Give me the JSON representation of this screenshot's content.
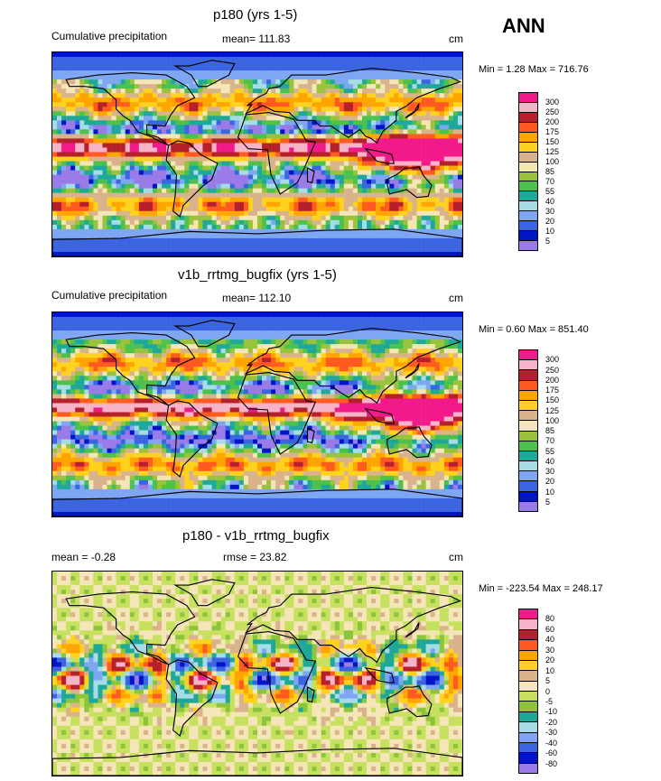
{
  "season": "ANN",
  "panels": [
    {
      "title": "p180 (yrs 1-5)",
      "left_label": "Cumulative precipitation",
      "center_label": "mean= 111.83",
      "units": "cm",
      "minmax": "Min =   1.28 Max = 716.76"
    },
    {
      "title": "v1b_rrtmg_bugfix (yrs 1-5)",
      "left_label": "Cumulative precipitation",
      "center_label": "mean= 112.10",
      "units": "cm",
      "minmax": "Min =  0.60 Max = 851.40"
    },
    {
      "title": "p180 - v1b_rrtmg_bugfix",
      "left_label": "mean =  -0.28",
      "center_label": "rmse =  23.82",
      "units": "cm",
      "minmax": "Min = -223.54 Max = 248.17"
    }
  ],
  "colorbar_abs": {
    "levels": [
      "300",
      "250",
      "200",
      "175",
      "150",
      "125",
      "100",
      "85",
      "70",
      "55",
      "40",
      "30",
      "20",
      "10",
      "5"
    ],
    "colors": [
      "#f2198a",
      "#f7b3c8",
      "#b5202a",
      "#ff5a1f",
      "#ffa500",
      "#ffd21f",
      "#d9b38c",
      "#f5e6b8",
      "#9ac23c",
      "#4cc14c",
      "#1fa89a",
      "#a6dce6",
      "#7ea6f2",
      "#3a64e0",
      "#0014c8",
      "#9a7ae6"
    ]
  },
  "colorbar_diff": {
    "levels": [
      "80",
      "60",
      "40",
      "30",
      "20",
      "10",
      "5",
      "0",
      "-5",
      "-10",
      "-20",
      "-30",
      "-40",
      "-60",
      "-80"
    ],
    "colors": [
      "#f2198a",
      "#f7b3c8",
      "#b5202a",
      "#ff5a1f",
      "#ffa500",
      "#ffd21f",
      "#d9b38c",
      "#f5e6b8",
      "#c8e060",
      "#8cc43c",
      "#1fa89a",
      "#a6dce6",
      "#7ea6f2",
      "#3a64e0",
      "#0014c8",
      "#9a7ae6"
    ]
  }
}
